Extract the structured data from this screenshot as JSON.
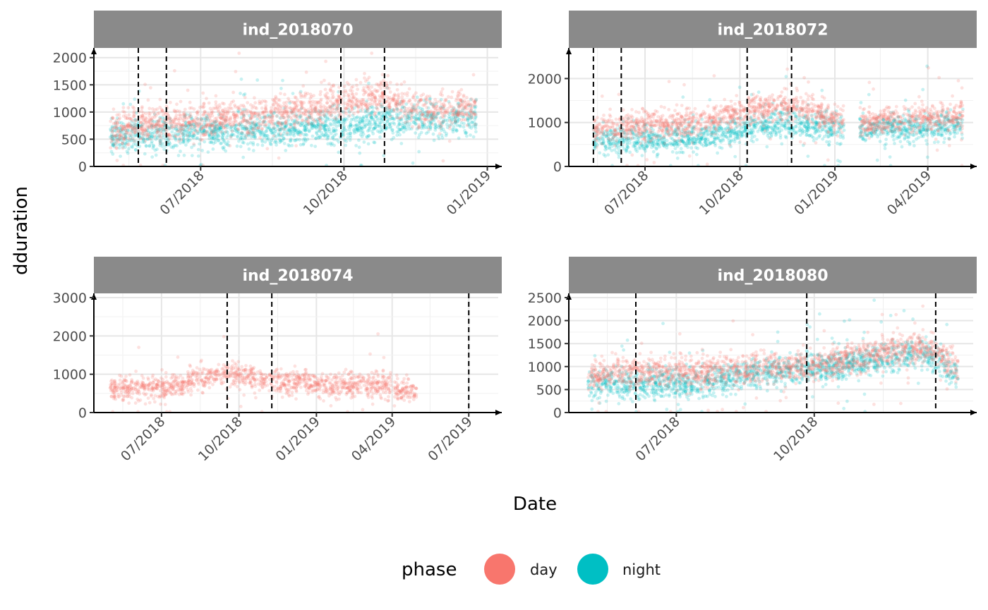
{
  "chart_data": {
    "type": "scatter",
    "x_label": "Date",
    "y_label": "dduration",
    "legend": {
      "title": "phase",
      "position": "bottom",
      "entries": [
        {
          "label": "day",
          "color": "#F8766D"
        },
        {
          "label": "night",
          "color": "#00BFC4"
        }
      ]
    },
    "grid": true,
    "panels": [
      {
        "title": "ind_2018070",
        "x_range": [
          "2018-04-28",
          "2019-01-08"
        ],
        "y_range": [
          0,
          2100
        ],
        "y_ticks": [
          0,
          500,
          1000,
          1500,
          2000
        ],
        "y_tick_labels": [
          "0",
          "500",
          "1000",
          "1500",
          "2000"
        ],
        "x_ticks": [
          "2018-07-01",
          "2018-10-01",
          "2019-01-01"
        ],
        "x_tick_labels": [
          "07/2018",
          "10/2018",
          "01/2019"
        ],
        "x_minor_ticks": [
          "2018-05-16",
          "2018-08-16",
          "2018-11-16"
        ],
        "vlines": [
          "2018-05-22",
          "2018-06-09",
          "2018-09-29",
          "2018-10-27"
        ],
        "series": [
          {
            "name": "night",
            "segments": [
              {
                "x_start": "2018-05-04",
                "x_end": "2018-12-25",
                "trend": [
                  [
                    "2018-05-04",
                    550
                  ],
                  [
                    "2018-06-15",
                    600
                  ],
                  [
                    "2018-08-01",
                    650
                  ],
                  [
                    "2018-09-15",
                    700
                  ],
                  [
                    "2018-10-15",
                    820
                  ],
                  [
                    "2018-11-15",
                    850
                  ],
                  [
                    "2018-12-25",
                    900
                  ]
                ]
              }
            ]
          },
          {
            "name": "day",
            "segments": [
              {
                "x_start": "2018-05-04",
                "x_end": "2018-12-25",
                "trend": [
                  [
                    "2018-05-04",
                    650
                  ],
                  [
                    "2018-06-01",
                    800
                  ],
                  [
                    "2018-07-01",
                    850
                  ],
                  [
                    "2018-08-15",
                    950
                  ],
                  [
                    "2018-10-01",
                    1180
                  ],
                  [
                    "2018-10-27",
                    1300
                  ],
                  [
                    "2018-11-15",
                    1000
                  ],
                  [
                    "2018-12-25",
                    1100
                  ]
                ]
              }
            ]
          }
        ]
      },
      {
        "title": "ind_2018072",
        "x_range": [
          "2018-04-25",
          "2019-05-15"
        ],
        "y_range": [
          0,
          2600
        ],
        "y_ticks": [
          0,
          1000,
          2000
        ],
        "y_tick_labels": [
          "0",
          "1000",
          "2000"
        ],
        "x_ticks": [
          "2018-07-01",
          "2018-10-01",
          "2019-01-01",
          "2019-04-01"
        ],
        "x_tick_labels": [
          "07/2018",
          "10/2018",
          "01/2019",
          "04/2019"
        ],
        "x_minor_ticks": [
          "2018-05-16",
          "2018-08-16",
          "2018-11-16",
          "2019-02-14"
        ],
        "vlines": [
          "2018-05-12",
          "2018-06-08",
          "2018-10-08",
          "2018-11-20"
        ],
        "series": [
          {
            "name": "night",
            "segments": [
              {
                "x_start": "2018-05-12",
                "x_end": "2019-01-10",
                "trend": [
                  [
                    "2018-05-12",
                    600
                  ],
                  [
                    "2018-07-01",
                    600
                  ],
                  [
                    "2018-09-01",
                    700
                  ],
                  [
                    "2018-10-15",
                    900
                  ],
                  [
                    "2018-11-20",
                    1000
                  ],
                  [
                    "2019-01-10",
                    800
                  ]
                ]
              },
              {
                "x_start": "2019-01-25",
                "x_end": "2019-05-05",
                "trend": [
                  [
                    "2019-01-25",
                    850
                  ],
                  [
                    "2019-03-15",
                    900
                  ],
                  [
                    "2019-05-05",
                    950
                  ]
                ]
              }
            ]
          },
          {
            "name": "day",
            "segments": [
              {
                "x_start": "2018-05-12",
                "x_end": "2019-01-10",
                "trend": [
                  [
                    "2018-05-12",
                    800
                  ],
                  [
                    "2018-07-01",
                    900
                  ],
                  [
                    "2018-09-01",
                    1050
                  ],
                  [
                    "2018-10-15",
                    1300
                  ],
                  [
                    "2018-11-20",
                    1400
                  ],
                  [
                    "2019-01-10",
                    1000
                  ]
                ]
              },
              {
                "x_start": "2019-01-25",
                "x_end": "2019-05-05",
                "trend": [
                  [
                    "2019-01-25",
                    950
                  ],
                  [
                    "2019-03-15",
                    1100
                  ],
                  [
                    "2019-05-05",
                    1150
                  ]
                ]
              }
            ]
          }
        ]
      },
      {
        "title": "ind_2018074",
        "x_range": [
          "2018-04-20",
          "2019-08-05"
        ],
        "y_range": [
          0,
          3000
        ],
        "y_ticks": [
          0,
          1000,
          2000,
          3000
        ],
        "y_tick_labels": [
          "0",
          "1000",
          "2000",
          "3000"
        ],
        "x_ticks": [
          "2018-07-01",
          "2018-10-01",
          "2019-01-01",
          "2019-04-01",
          "2019-07-01"
        ],
        "x_tick_labels": [
          "07/2018",
          "10/2018",
          "01/2019",
          "04/2019",
          "07/2019"
        ],
        "x_minor_ticks": [
          "2018-05-16",
          "2018-08-16",
          "2018-11-16",
          "2019-02-14",
          "2019-05-16"
        ],
        "vlines": [
          "2018-09-17",
          "2018-11-09",
          "2019-07-01"
        ],
        "series": [
          {
            "name": "day",
            "segments": [
              {
                "x_start": "2018-05-01",
                "x_end": "2019-03-31",
                "trend": [
                  [
                    "2018-05-01",
                    650
                  ],
                  [
                    "2018-07-15",
                    650
                  ],
                  [
                    "2018-08-15",
                    900
                  ],
                  [
                    "2018-10-01",
                    1000
                  ],
                  [
                    "2018-11-15",
                    800
                  ],
                  [
                    "2019-01-15",
                    700
                  ],
                  [
                    "2019-03-31",
                    700
                  ]
                ]
              },
              {
                "x_start": "2019-04-03",
                "x_end": "2019-04-30",
                "trend": [
                  [
                    "2019-04-03",
                    600
                  ],
                  [
                    "2019-04-30",
                    550
                  ]
                ]
              }
            ]
          }
        ]
      },
      {
        "title": "ind_2018080",
        "x_range": [
          "2018-04-25",
          "2019-01-15"
        ],
        "y_range": [
          0,
          2500
        ],
        "y_ticks": [
          0,
          500,
          1000,
          1500,
          2000,
          2500
        ],
        "y_tick_labels": [
          "0",
          "500",
          "1000",
          "1500",
          "2000",
          "2500"
        ],
        "x_ticks": [
          "2018-07-01",
          "2018-10-01"
        ],
        "x_tick_labels": [
          "07/2018",
          "10/2018"
        ],
        "x_minor_ticks": [
          "2018-05-16",
          "2018-08-16",
          "2018-11-16"
        ],
        "vlines": [
          "2018-06-04",
          "2018-09-26",
          "2018-12-21"
        ],
        "series": [
          {
            "name": "night",
            "segments": [
              {
                "x_start": "2018-05-03",
                "x_end": "2019-01-05",
                "trend": [
                  [
                    "2018-05-03",
                    600
                  ],
                  [
                    "2018-06-15",
                    650
                  ],
                  [
                    "2018-07-15",
                    600
                  ],
                  [
                    "2018-08-15",
                    800
                  ],
                  [
                    "2018-09-15",
                    900
                  ],
                  [
                    "2018-10-15",
                    1000
                  ],
                  [
                    "2018-11-15",
                    1150
                  ],
                  [
                    "2018-12-15",
                    1300
                  ],
                  [
                    "2019-01-05",
                    800
                  ]
                ]
              }
            ]
          },
          {
            "name": "day",
            "segments": [
              {
                "x_start": "2018-05-03",
                "x_end": "2019-01-05",
                "trend": [
                  [
                    "2018-05-03",
                    800
                  ],
                  [
                    "2018-06-15",
                    900
                  ],
                  [
                    "2018-07-15",
                    850
                  ],
                  [
                    "2018-08-15",
                    950
                  ],
                  [
                    "2018-09-15",
                    1000
                  ],
                  [
                    "2018-10-15",
                    1100
                  ],
                  [
                    "2018-11-15",
                    1300
                  ],
                  [
                    "2018-12-15",
                    1450
                  ],
                  [
                    "2019-01-05",
                    1000
                  ]
                ]
              }
            ]
          }
        ]
      }
    ]
  }
}
